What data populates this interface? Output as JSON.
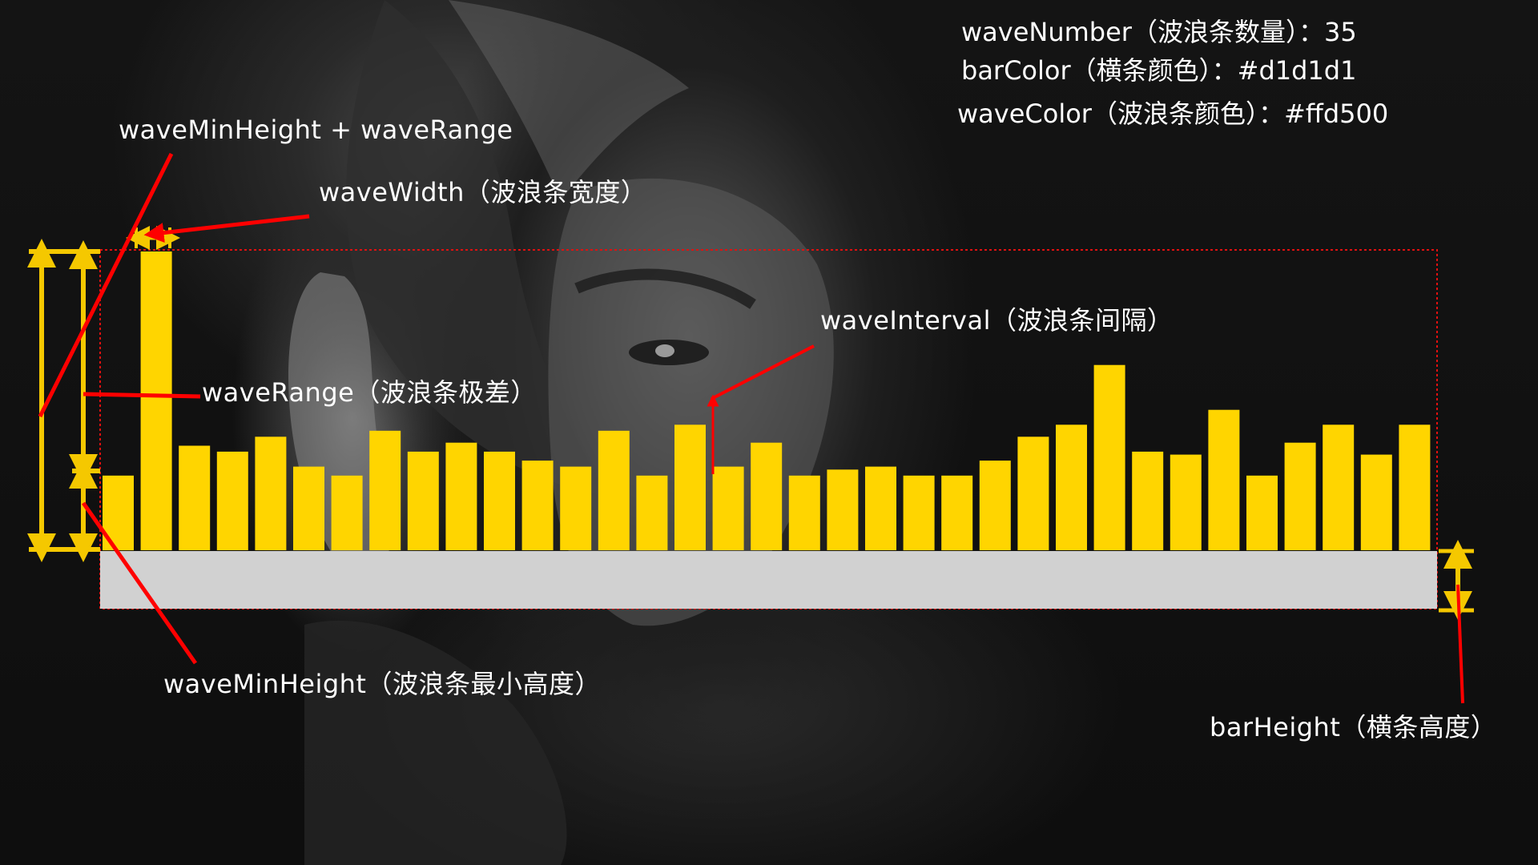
{
  "colors": {
    "wave_color": "#ffd500",
    "bar_color": "#d1d1d1",
    "annotation_color": "#ff0000",
    "measure_color": "#f5c800",
    "text_color": "#ffffff"
  },
  "info": {
    "wave_number": "waveNumber（波浪条数量）：35",
    "bar_color": "barColor（横条颜色）：#d1d1d1",
    "wave_color": "waveColor（波浪条颜色）：#ffd500"
  },
  "labels": {
    "min_plus_range": "waveMinHeight + waveRange",
    "wave_width": "waveWidth（波浪条宽度）",
    "wave_range": "waveRange（波浪条极差）",
    "wave_interval": "waveInterval（波浪条间隔）",
    "wave_min_height": "waveMinHeight（波浪条最小高度）",
    "bar_height": "barHeight（横条高度）"
  },
  "chart_data": {
    "type": "bar",
    "wave_count": 35,
    "values": [
      0.25,
      1.0,
      0.35,
      0.33,
      0.38,
      0.28,
      0.25,
      0.4,
      0.33,
      0.36,
      0.33,
      0.3,
      0.28,
      0.4,
      0.25,
      0.42,
      0.28,
      0.36,
      0.25,
      0.27,
      0.28,
      0.25,
      0.25,
      0.3,
      0.38,
      0.42,
      0.62,
      0.33,
      0.32,
      0.47,
      0.25,
      0.36,
      0.42,
      0.32,
      0.42
    ]
  }
}
